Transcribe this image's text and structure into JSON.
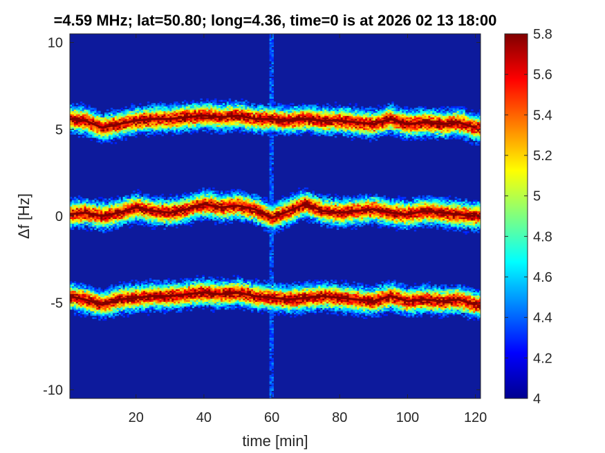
{
  "chart_data": {
    "type": "heatmap",
    "title": "=4.59 MHz;  lat=50.80; long=4.36, time=0 is at 2026 02 13 18:00",
    "xlabel": "time [min]",
    "ylabel": "Δf [Hz]",
    "xlim": [
      0.5,
      121.5
    ],
    "ylim": [
      -10.5,
      10.5
    ],
    "x_ticks": [
      20,
      40,
      60,
      80,
      100,
      120
    ],
    "x_tick_labels": [
      "20",
      "40",
      "60",
      "80",
      "100",
      "120"
    ],
    "y_ticks": [
      -10,
      -5,
      0,
      5,
      10
    ],
    "y_tick_labels": [
      "-10",
      "-5",
      "0",
      "5",
      "10"
    ],
    "colorbar": {
      "colormap": "jet",
      "limits": [
        4,
        5.8
      ],
      "ticks": [
        4,
        4.2,
        4.4,
        4.6,
        4.8,
        5,
        5.2,
        5.4,
        5.6,
        5.8
      ],
      "tick_labels": [
        "4",
        "4.2",
        "4.4",
        "4.6",
        "4.8",
        "5",
        "5.2",
        "5.4",
        "5.6",
        "5.8"
      ]
    },
    "background_level": 4.05,
    "vertical_artifact_time": 60,
    "series": [
      {
        "peak_level": 5.8,
        "track_time": [
          0,
          5,
          10,
          15,
          20,
          25,
          30,
          35,
          40,
          45,
          50,
          55,
          60,
          65,
          70,
          75,
          80,
          85,
          90,
          95,
          100,
          105,
          110,
          115,
          120
        ],
        "track_df": [
          5.6,
          5.5,
          5.1,
          5.3,
          5.5,
          5.6,
          5.6,
          5.7,
          5.8,
          5.7,
          5.8,
          5.6,
          5.6,
          5.5,
          5.6,
          5.5,
          5.5,
          5.4,
          5.3,
          5.6,
          5.3,
          5.4,
          5.3,
          5.4,
          5.1
        ]
      },
      {
        "peak_level": 5.8,
        "track_time": [
          0,
          5,
          10,
          15,
          20,
          25,
          30,
          35,
          40,
          45,
          50,
          55,
          60,
          65,
          70,
          75,
          80,
          85,
          90,
          95,
          100,
          105,
          110,
          115,
          120
        ],
        "track_df": [
          0.1,
          0.2,
          0.0,
          0.2,
          0.5,
          0.3,
          0.2,
          0.4,
          0.7,
          0.5,
          0.6,
          0.4,
          -0.1,
          0.3,
          0.7,
          0.3,
          0.2,
          0.3,
          0.4,
          0.2,
          0.1,
          0.3,
          0.2,
          0.1,
          0.0
        ]
      },
      {
        "peak_level": 5.8,
        "track_time": [
          0,
          5,
          10,
          15,
          20,
          25,
          30,
          35,
          40,
          45,
          50,
          55,
          60,
          65,
          70,
          75,
          80,
          85,
          90,
          95,
          100,
          105,
          110,
          115,
          120
        ],
        "track_df": [
          -4.6,
          -4.8,
          -5.1,
          -4.8,
          -4.7,
          -4.6,
          -4.6,
          -4.5,
          -4.4,
          -4.5,
          -4.4,
          -4.6,
          -4.7,
          -4.8,
          -4.7,
          -4.6,
          -4.7,
          -4.8,
          -4.9,
          -4.6,
          -4.9,
          -4.8,
          -4.9,
          -4.8,
          -5.1
        ]
      }
    ]
  }
}
